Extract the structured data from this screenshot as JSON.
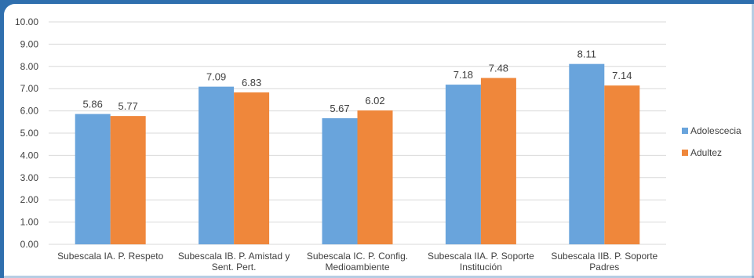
{
  "chart_data": {
    "type": "bar",
    "categories": [
      [
        "Subescala IA. P. Respeto"
      ],
      [
        "Subescala IB. P. Amistad y",
        "Sent. Pert."
      ],
      [
        "Subescala IC. P. Config.",
        "Medioambiente"
      ],
      [
        "Subescala IIA. P. Soporte",
        "Institución"
      ],
      [
        "Subescala IIB. P. Soporte",
        "Padres"
      ]
    ],
    "series": [
      {
        "name": "Adolescecia",
        "color": "#69a4dc",
        "values": [
          5.86,
          7.09,
          5.67,
          7.18,
          8.11
        ]
      },
      {
        "name": "Adultez",
        "color": "#ef873b",
        "values": [
          5.77,
          6.83,
          6.02,
          7.48,
          7.14
        ]
      }
    ],
    "ylim": [
      0,
      10
    ],
    "ytick_step": 1,
    "ytick_decimals": 2,
    "value_decimals": 2,
    "grid": true,
    "legend_position": "right",
    "gridline_color": "#d9d9d9",
    "text_color": "#404040"
  }
}
